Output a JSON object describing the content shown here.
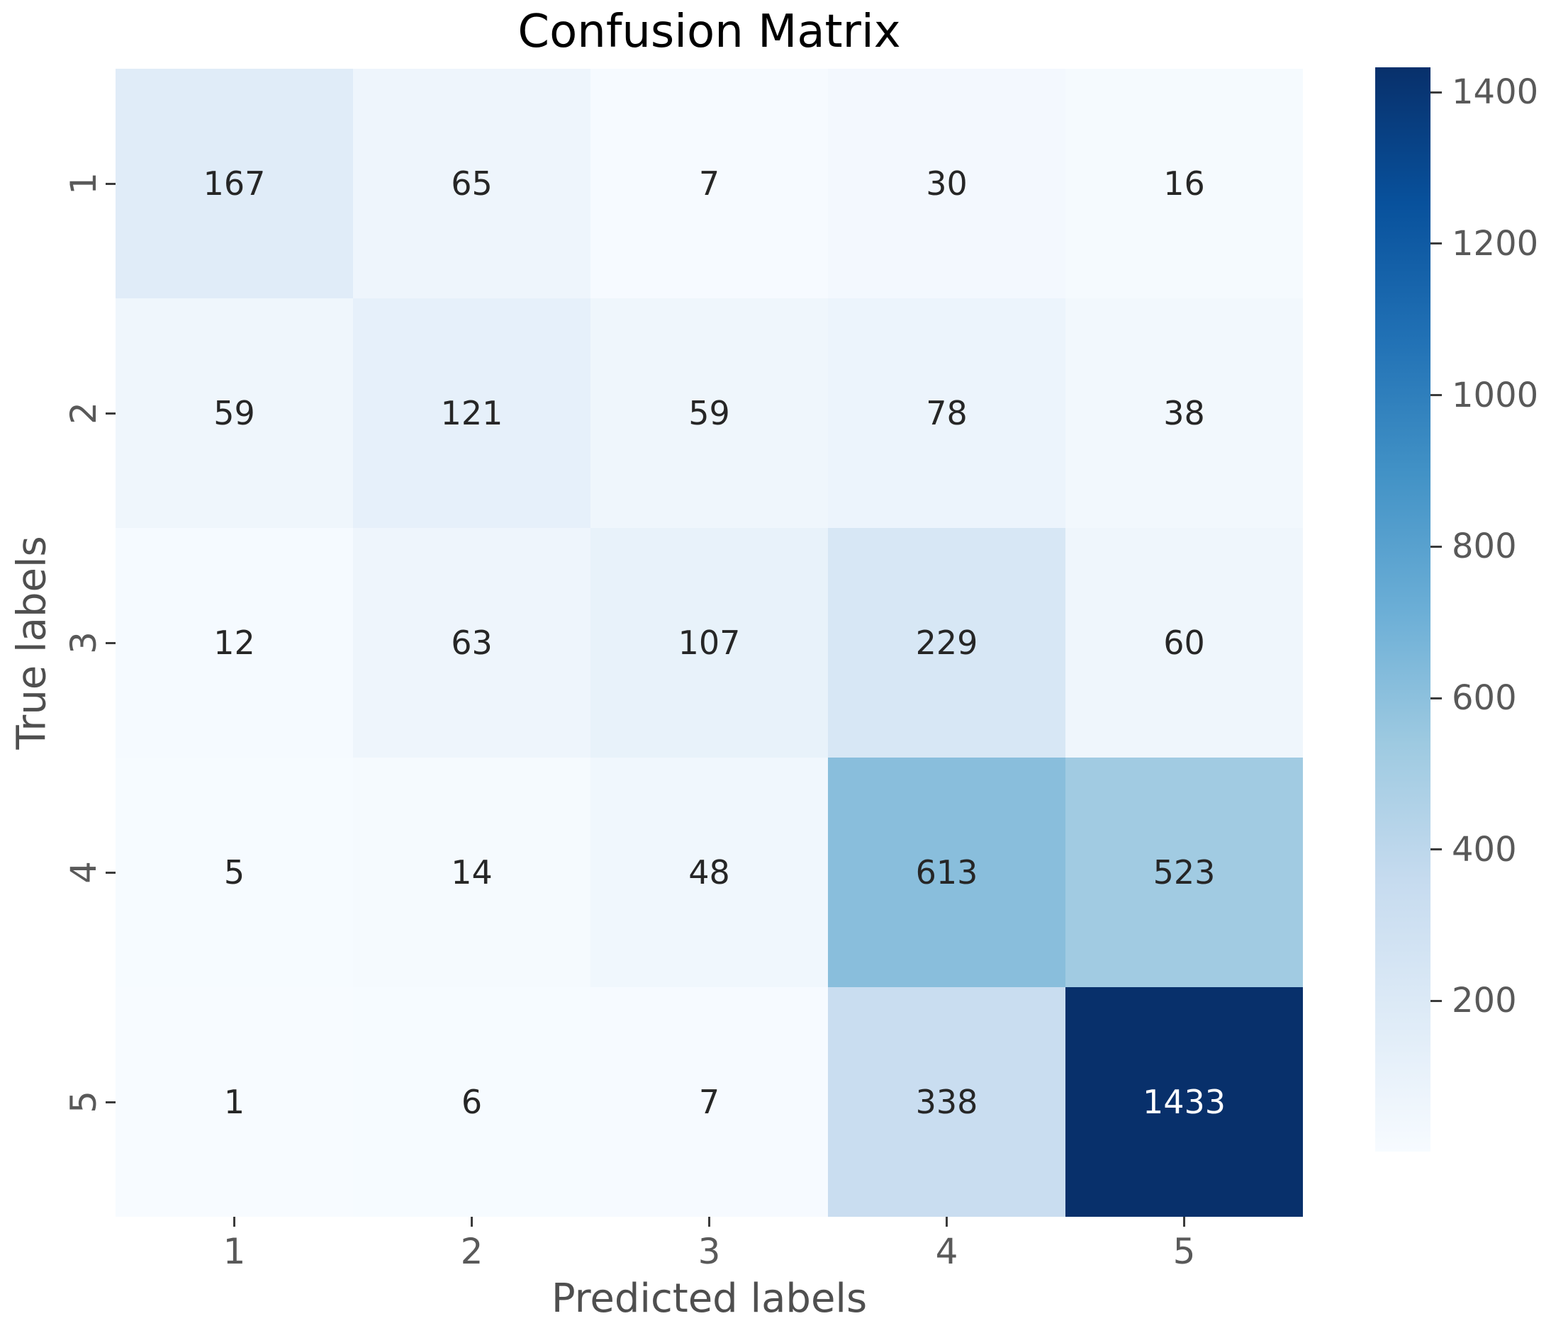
{
  "chart_data": {
    "type": "heatmap",
    "title": "Confusion Matrix",
    "xlabel": "Predicted labels",
    "ylabel": "True labels",
    "x_tick_labels": [
      "1",
      "2",
      "3",
      "4",
      "5"
    ],
    "y_tick_labels": [
      "1",
      "2",
      "3",
      "4",
      "5"
    ],
    "matrix": [
      [
        167,
        65,
        7,
        30,
        16
      ],
      [
        59,
        121,
        59,
        78,
        38
      ],
      [
        12,
        63,
        107,
        229,
        60
      ],
      [
        5,
        14,
        48,
        613,
        523
      ],
      [
        1,
        6,
        7,
        338,
        1433
      ]
    ],
    "vmin": 1,
    "vmax": 1433,
    "colormap": "Blues",
    "colormap_stops": [
      "#f7fbff",
      "#deebf7",
      "#c6dbef",
      "#9ecae1",
      "#6baed6",
      "#4292c6",
      "#2171b5",
      "#08519c",
      "#08306b"
    ],
    "colorbar_ticks": [
      200,
      400,
      600,
      800,
      1000,
      1200,
      1400
    ],
    "legend_position": "right",
    "grid": false,
    "colors": {
      "annotation_dark": "#262626",
      "annotation_light": "#ffffff",
      "tick_label": "#595959",
      "axis_label": "#4f4f4f",
      "title": "#000000",
      "background": "#ffffff"
    }
  }
}
